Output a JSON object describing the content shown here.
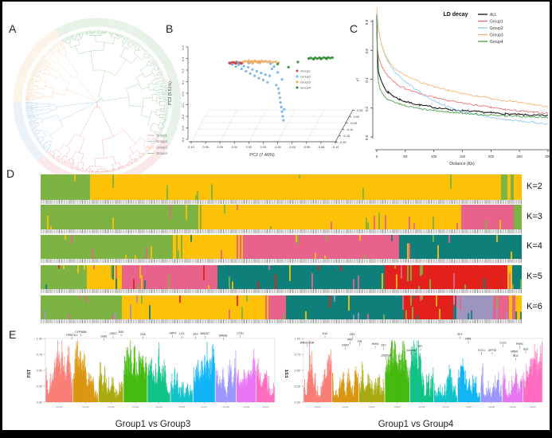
{
  "panels": {
    "a": "A",
    "b": "B",
    "c": "C",
    "d": "D",
    "e": "E"
  },
  "groups": [
    {
      "label": "Group1",
      "color": "#cf4444",
      "tree_color": "#efa8a8",
      "ld_color": "#e87070"
    },
    {
      "label": "Group2",
      "color": "#74b4e8",
      "tree_color": "#aecfe8",
      "ld_color": "#8fc8ee"
    },
    {
      "label": "Group3",
      "color": "#f0a860",
      "tree_color": "#f5d2a8",
      "ld_color": "#f6b470"
    },
    {
      "label": "Group4",
      "color": "#2f8b2f",
      "tree_color": "#9ccf9c",
      "ld_color": "#43a045"
    }
  ],
  "colors": {
    "all_line": "#111111",
    "axis_gray": "#aaaaaa",
    "tick_text": "#555555",
    "admixture": {
      "green": "#7cb342",
      "yellow": "#fdc107",
      "pink": "#e8638c",
      "teal": "#0f7f7a",
      "red": "#e3211c",
      "purple": "#9e94c0"
    },
    "chromosomes": [
      "#F8766D",
      "#D89000",
      "#A3A500",
      "#39B600",
      "#00BF7D",
      "#00BFC4",
      "#00B0F6",
      "#9590FF",
      "#E76BF3",
      "#FF62BC"
    ]
  },
  "chart_data": [
    {
      "id": "phylo_tree",
      "type": "dendrogram_circular",
      "legend": [
        "Group1",
        "Group2",
        "Group3",
        "Group4"
      ],
      "sectors": [
        {
          "group": "Group4",
          "start_deg": -30,
          "end_deg": 120,
          "leaves": 120
        },
        {
          "group": "Group1",
          "start_deg": 120,
          "end_deg": 225,
          "leaves": 92
        },
        {
          "group": "Group2",
          "start_deg": 225,
          "end_deg": 270,
          "leaves": 42
        },
        {
          "group": "Group3",
          "start_deg": 270,
          "end_deg": 330,
          "leaves": 56
        }
      ]
    },
    {
      "id": "pca",
      "type": "scatter",
      "xlabel": "PC2 (7.46%)",
      "ylabel": "PC3 (5.51%)",
      "x_ticks": [
        "0.10",
        "0.08",
        "0.06",
        "0.04",
        "0.02",
        "0.00",
        "-0.02",
        "-0.04",
        "-0.06",
        "-0.08",
        "-0.10"
      ],
      "y_ticks": [
        "0.4",
        "0.3",
        "0.2",
        "0.1",
        "0.0",
        "-0.1",
        "-0.2",
        "-0.3",
        "-0.4"
      ],
      "z_ticks": [
        "-0.20",
        "-0.15",
        "-0.10",
        "-0.05",
        "0.00",
        "0.05"
      ],
      "legend": [
        "Group1",
        "Group2",
        "Group3",
        "Group4"
      ],
      "series": [
        {
          "name": "Group1",
          "points": [
            [
              0.047,
              0.262
            ],
            [
              0.0455,
              0.258
            ],
            [
              0.044,
              0.265
            ],
            [
              0.0425,
              0.26
            ],
            [
              0.041,
              0.267
            ],
            [
              0.0395,
              0.262
            ],
            [
              0.038,
              0.258
            ],
            [
              0.0365,
              0.264
            ],
            [
              0.035,
              0.26
            ],
            [
              0.0335,
              0.266
            ],
            [
              0.032,
              0.261
            ],
            [
              0.0305,
              0.257
            ],
            [
              0.029,
              0.263
            ],
            [
              0.043,
              0.255
            ],
            [
              0.037,
              0.27
            ]
          ]
        },
        {
          "name": "Group2",
          "points": [
            [
              0.043,
              0.25
            ],
            [
              0.038,
              0.23
            ],
            [
              0.034,
              0.245
            ],
            [
              0.03,
              0.21
            ],
            [
              0.027,
              0.235
            ],
            [
              0.024,
              0.19
            ],
            [
              0.021,
              0.225
            ],
            [
              0.018,
              0.17
            ],
            [
              0.015,
              0.205
            ],
            [
              0.012,
              0.15
            ],
            [
              0.009,
              0.19
            ],
            [
              0.006,
              0.13
            ],
            [
              0.003,
              0.175
            ],
            [
              0.0,
              0.115
            ],
            [
              -0.003,
              0.16
            ],
            [
              -0.006,
              0.095
            ],
            [
              -0.009,
              0.15
            ],
            [
              -0.012,
              0.21
            ],
            [
              -0.015,
              0.23
            ],
            [
              -0.018,
              0.07
            ],
            [
              -0.02,
              0.18
            ],
            [
              -0.021,
              0.04
            ],
            [
              -0.022,
              0.0
            ],
            [
              -0.023,
              -0.04
            ],
            [
              -0.024,
              -0.08
            ],
            [
              -0.025,
              -0.12
            ],
            [
              -0.026,
              -0.16
            ],
            [
              -0.027,
              -0.2
            ],
            [
              -0.028,
              -0.235
            ],
            [
              -0.029,
              -0.14
            ],
            [
              -0.026,
              0.12
            ],
            [
              0.02,
              0.26
            ],
            [
              0.035,
              0.265
            ],
            [
              -0.01,
              0.255
            ]
          ]
        },
        {
          "name": "Group3",
          "points": [
            [
              0.028,
              0.27
            ],
            [
              0.025,
              0.278
            ],
            [
              0.022,
              0.272
            ],
            [
              0.02,
              0.282
            ],
            [
              0.018,
              0.268
            ],
            [
              0.016,
              0.276
            ],
            [
              0.014,
              0.27
            ],
            [
              0.012,
              0.28
            ],
            [
              0.01,
              0.274
            ],
            [
              0.008,
              0.267
            ],
            [
              0.006,
              0.276
            ],
            [
              0.004,
              0.27
            ],
            [
              0.002,
              0.28
            ],
            [
              0.0,
              0.272
            ],
            [
              -0.003,
              0.277
            ],
            [
              -0.006,
              0.27
            ],
            [
              -0.009,
              0.275
            ],
            [
              -0.013,
              0.268
            ],
            [
              -0.017,
              0.272
            ],
            [
              -0.021,
              0.266
            ],
            [
              0.015,
              0.26
            ],
            [
              0.005,
              0.262
            ]
          ]
        },
        {
          "name": "Group4",
          "points": [
            [
              -0.063,
              0.3
            ],
            [
              -0.066,
              0.305
            ],
            [
              -0.069,
              0.298
            ],
            [
              -0.072,
              0.306
            ],
            [
              -0.075,
              0.3
            ],
            [
              -0.078,
              0.307
            ],
            [
              -0.081,
              0.301
            ],
            [
              -0.084,
              0.308
            ],
            [
              -0.087,
              0.303
            ],
            [
              -0.09,
              0.309
            ],
            [
              -0.093,
              0.304
            ],
            [
              -0.096,
              0.308
            ],
            [
              -0.07,
              0.295
            ],
            [
              -0.08,
              0.296
            ],
            [
              -0.088,
              0.297
            ],
            [
              -0.035,
              0.225
            ],
            [
              -0.02,
              0.252
            ],
            [
              -0.048,
              0.27
            ]
          ]
        }
      ]
    },
    {
      "id": "ld_decay",
      "type": "line",
      "title": "LD decay",
      "xlabel": "Distance (Kb)",
      "ylabel": "r²",
      "x_ticks": [
        0,
        50,
        100,
        150,
        200,
        250,
        300
      ],
      "y_ticks": [
        "0.0",
        "0.2",
        "0.4",
        "0.6",
        "0.8"
      ],
      "x": [
        0,
        1,
        3,
        6,
        10,
        15,
        20,
        30,
        40,
        50,
        75,
        100,
        125,
        150,
        175,
        200,
        225,
        250,
        275,
        300
      ],
      "series": [
        {
          "name": "ALL",
          "values": [
            0.85,
            0.6,
            0.45,
            0.41,
            0.37,
            0.33,
            0.31,
            0.28,
            0.26,
            0.245,
            0.222,
            0.205,
            0.192,
            0.182,
            0.175,
            0.168,
            0.16,
            0.155,
            0.15,
            0.148
          ]
        },
        {
          "name": "Group1",
          "values": [
            0.75,
            0.62,
            0.56,
            0.52,
            0.48,
            0.445,
            0.42,
            0.385,
            0.355,
            0.335,
            0.3,
            0.275,
            0.252,
            0.235,
            0.22,
            0.205,
            0.19,
            0.18,
            0.17,
            0.165
          ]
        },
        {
          "name": "Group2",
          "values": [
            0.86,
            0.8,
            0.74,
            0.68,
            0.62,
            0.56,
            0.52,
            0.46,
            0.42,
            0.385,
            0.31,
            0.25,
            0.21,
            0.175,
            0.152,
            0.135,
            0.12,
            0.11,
            0.1,
            0.09
          ]
        },
        {
          "name": "Group3",
          "values": [
            0.9,
            0.85,
            0.75,
            0.68,
            0.62,
            0.57,
            0.53,
            0.48,
            0.45,
            0.425,
            0.38,
            0.35,
            0.325,
            0.3,
            0.285,
            0.268,
            0.252,
            0.238,
            0.225,
            0.21
          ]
        },
        {
          "name": "Group4",
          "values": [
            0.8,
            0.48,
            0.38,
            0.33,
            0.3,
            0.275,
            0.26,
            0.24,
            0.225,
            0.215,
            0.195,
            0.183,
            0.173,
            0.165,
            0.158,
            0.152,
            0.147,
            0.142,
            0.138,
            0.135
          ]
        }
      ]
    },
    {
      "id": "admixture",
      "type": "stacked_bar_rows",
      "rows": [
        {
          "label": "K=2",
          "noise": 0.05,
          "segments": [
            [
              "green",
              0.105
            ],
            [
              "yellow",
              0.845
            ],
            [
              "green",
              0.032
            ],
            [
              "yellow",
              0.018
            ]
          ]
        },
        {
          "label": "K=3",
          "noise": 0.08,
          "segments": [
            [
              "green",
              0.33
            ],
            [
              "yellow",
              0.545
            ],
            [
              "pink",
              0.1
            ],
            [
              "green",
              0.025
            ]
          ]
        },
        {
          "label": "K=4",
          "noise": 0.1,
          "segments": [
            [
              "green",
              0.285
            ],
            [
              "yellow",
              0.125
            ],
            [
              "pink",
              0.335
            ],
            [
              "teal",
              0.255
            ]
          ]
        },
        {
          "label": "K=5",
          "noise": 0.14,
          "segments": [
            [
              "green",
              0.095
            ],
            [
              "yellow",
              0.065
            ],
            [
              "pink",
              0.21
            ],
            [
              "teal",
              0.345
            ],
            [
              "red",
              0.255
            ],
            [
              "yellow",
              0.012
            ],
            [
              "teal",
              0.018
            ]
          ]
        },
        {
          "label": "K=6",
          "noise": 0.14,
          "segments": [
            [
              "green",
              0.17
            ],
            [
              "yellow",
              0.3
            ],
            [
              "pink",
              0.035
            ],
            [
              "teal",
              0.25
            ],
            [
              "red",
              0.105
            ],
            [
              "purple",
              0.085
            ],
            [
              "pink",
              0.035
            ],
            [
              "yellow",
              0.02
            ]
          ]
        }
      ]
    },
    {
      "id": "fst_left",
      "type": "manhattan",
      "title": "Group1 vs Group3",
      "ylabel": "FST",
      "y_ticks": [
        "1.00",
        "0.75",
        "0.50",
        "0.25",
        "0.00"
      ],
      "chromosomes": [
        "Chr01",
        "Chr02",
        "Chr03",
        "Chr04",
        "Chr05",
        "Chr06",
        "Chr07",
        "Chr08",
        "Chr09",
        "Chr10"
      ],
      "rel_widths": [
        1.15,
        1.08,
        1.05,
        1.0,
        0.97,
        0.95,
        0.92,
        0.88,
        0.82,
        0.78
      ],
      "genes": [
        {
          "name": "TPR075.1",
          "x": 0.115,
          "y": 1.04
        },
        {
          "name": "CYP96B4",
          "x": 0.155,
          "y": 1.09
        },
        {
          "name": "G9b1",
          "x": 0.255,
          "y": 1.02
        },
        {
          "name": "GSK2",
          "x": 0.295,
          "y": 1.06
        },
        {
          "name": "RA2",
          "x": 0.33,
          "y": 1.09
        },
        {
          "name": "D18",
          "x": 0.425,
          "y": 1.05
        },
        {
          "name": "GRF3",
          "x": 0.555,
          "y": 1.07
        },
        {
          "name": "LG1",
          "x": 0.595,
          "y": 1.06
        },
        {
          "name": "SPY",
          "x": 0.655,
          "y": 1.05
        },
        {
          "name": "MADS7",
          "x": 0.695,
          "y": 1.06
        },
        {
          "name": "SAMS1",
          "x": 0.775,
          "y": 1.03
        },
        {
          "name": "CLG1",
          "x": 0.85,
          "y": 1.07
        }
      ]
    },
    {
      "id": "fst_right",
      "type": "manhattan",
      "title": "Group1 vs Group4",
      "ylabel": "FST",
      "y_ticks": [
        "1.00",
        "0.75",
        "0.50",
        "0.25",
        "0.00"
      ],
      "chromosomes": [
        "Chr01",
        "Chr02",
        "Chr03",
        "Chr04",
        "Chr05",
        "Chr06",
        "Chr07",
        "Chr08",
        "Chr09",
        "Chr10"
      ],
      "rel_widths": [
        1.15,
        1.08,
        1.05,
        1.0,
        0.97,
        0.95,
        0.92,
        0.88,
        0.82,
        0.78
      ],
      "genes": [
        {
          "name": "MADS14/34",
          "x": 0.015,
          "y": 0.92
        },
        {
          "name": "D14",
          "x": 0.09,
          "y": 1.06
        },
        {
          "name": "GSK2",
          "x": 0.175,
          "y": 0.88
        },
        {
          "name": "RA2",
          "x": 0.195,
          "y": 0.97
        },
        {
          "name": "RE1",
          "x": 0.205,
          "y": 1.05
        },
        {
          "name": "FIB",
          "x": 0.235,
          "y": 0.94
        },
        {
          "name": "HXK6",
          "x": 0.3,
          "y": 0.9
        },
        {
          "name": "D10",
          "x": 0.335,
          "y": 0.88
        },
        {
          "name": "USDKy4",
          "x": 0.345,
          "y": 0.72
        },
        {
          "name": "GA2ox6",
          "x": 0.45,
          "y": 0.8
        },
        {
          "name": "RFL",
          "x": 0.49,
          "y": 0.86
        },
        {
          "name": "SPY",
          "x": 0.655,
          "y": 1.05
        },
        {
          "name": "DW1",
          "x": 0.69,
          "y": 0.98
        },
        {
          "name": "CCC1",
          "x": 0.745,
          "y": 0.8
        },
        {
          "name": "OFP19",
          "x": 0.79,
          "y": 0.8
        },
        {
          "name": "CLG1",
          "x": 0.835,
          "y": 0.92
        },
        {
          "name": "NRM1",
          "x": 0.883,
          "y": 0.78
        },
        {
          "name": "KO2",
          "x": 0.888,
          "y": 0.71
        },
        {
          "name": "PNH1",
          "x": 0.905,
          "y": 0.9
        },
        {
          "name": "GL6",
          "x": 0.93,
          "y": 0.82
        }
      ]
    }
  ]
}
